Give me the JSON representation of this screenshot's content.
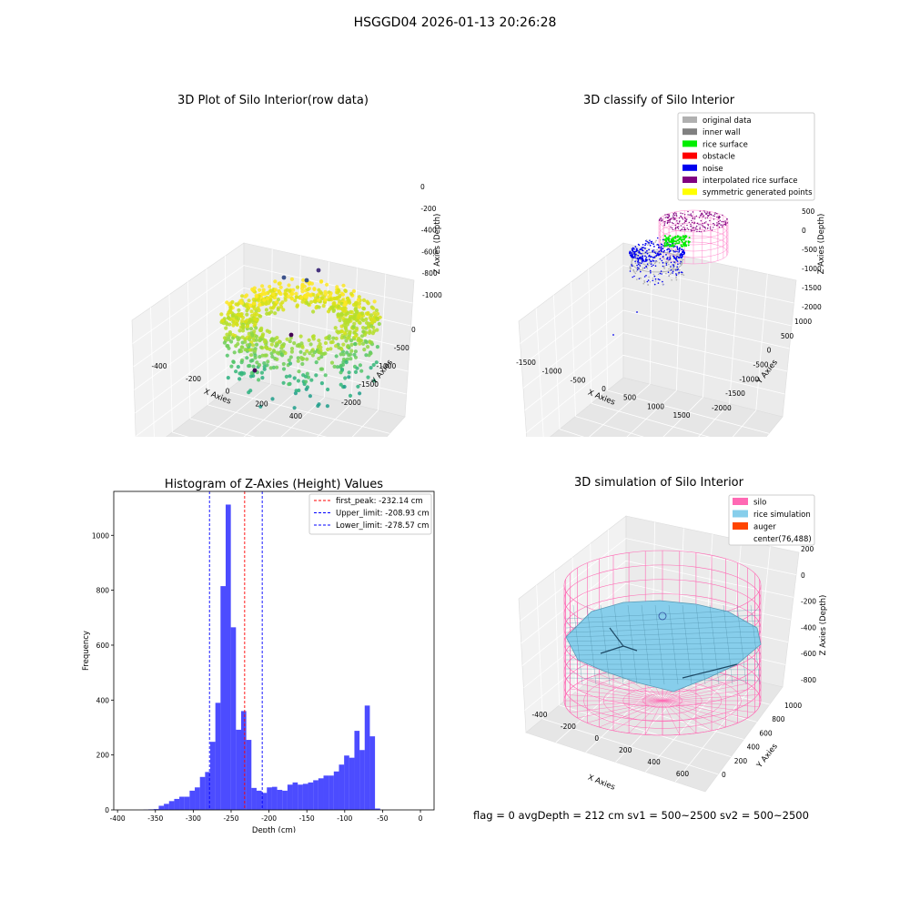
{
  "suptitle": "HSGGD04 2026-01-13 20:26:28",
  "panels": {
    "raw": {
      "title": "3D Plot of Silo Interior(row data)",
      "xlabel": "X Axies",
      "ylabel": "Y Axies",
      "zlabel": "Z Axies (Depth)",
      "xticks": [
        "-400",
        "-200",
        "0",
        "200",
        "400"
      ],
      "yticks": [
        "0",
        "-500",
        "-1000",
        "-1500",
        "-2000"
      ],
      "zticks": [
        "0",
        "-200",
        "-400",
        "-600",
        "-800",
        "-1000"
      ]
    },
    "classify": {
      "title": "3D classify of Silo Interior",
      "xlabel": "X Axies",
      "ylabel": "Y Axies",
      "zlabel": "Z Axies (Depth)",
      "xticks": [
        "-1500",
        "-1000",
        "-500",
        "0",
        "500",
        "1000",
        "1500"
      ],
      "yticks": [
        "1000",
        "500",
        "0",
        "-500",
        "-1000",
        "-1500",
        "-2000"
      ],
      "zticks": [
        "500",
        "0",
        "-500",
        "-1000",
        "-1500",
        "-2000"
      ],
      "legend": [
        {
          "label": "original data",
          "color": "#b0b0b0"
        },
        {
          "label": "inner wall",
          "color": "#808080"
        },
        {
          "label": "rice surface",
          "color": "#00ee00"
        },
        {
          "label": "obstacle",
          "color": "#ff0000"
        },
        {
          "label": "noise",
          "color": "#0000ee"
        },
        {
          "label": "interpolated rice surface",
          "color": "#800080"
        },
        {
          "label": "symmetric generated points",
          "color": "#ffff00"
        }
      ]
    },
    "sim": {
      "title": "3D simulation of Silo Interior",
      "xlabel": "X Axies",
      "ylabel": "Y Axies",
      "zlabel": "Z Axies (Depth)",
      "xticks": [
        "-400",
        "-200",
        "0",
        "200",
        "400",
        "600"
      ],
      "yticks": [
        "0",
        "200",
        "400",
        "600",
        "800",
        "1000"
      ],
      "zticks": [
        "200",
        "0",
        "-200",
        "-400",
        "-600",
        "-800"
      ],
      "legend": [
        {
          "label": "silo",
          "color": "#ff69b4"
        },
        {
          "label": "rice simulation",
          "color": "#87ceeb"
        },
        {
          "label": "auger",
          "color": "#ff4500"
        },
        {
          "label": "center(76,488)",
          "color": ""
        }
      ]
    }
  },
  "chart_data": {
    "type": "bar",
    "title": "Histogram of Z-Axies (Height) Values",
    "xlabel": "Depth (cm)",
    "ylabel": "Frequency",
    "xlim": [
      -405,
      18
    ],
    "ylim": [
      0,
      1160
    ],
    "xticks": [
      -400,
      -350,
      -300,
      -250,
      -200,
      -150,
      -100,
      -50,
      0
    ],
    "yticks": [
      0,
      200,
      400,
      600,
      800,
      1000
    ],
    "bins": {
      "start": -366,
      "width": 6.8,
      "values": [
        1,
        2,
        3,
        15,
        22,
        32,
        40,
        48,
        48,
        70,
        82,
        120,
        138,
        248,
        390,
        815,
        1112,
        665,
        292,
        360,
        255,
        80,
        70,
        62,
        82,
        84,
        73,
        70,
        92,
        100,
        92,
        95,
        100,
        108,
        115,
        125,
        125,
        140,
        165,
        198,
        190,
        288,
        218,
        380,
        268,
        5
      ]
    },
    "vlines": [
      {
        "label": "first_peak: -232.14 cm",
        "x": -232.14,
        "color": "#ff0000"
      },
      {
        "label": "Upper_limit: -208.93 cm",
        "x": -208.93,
        "color": "#0000ff"
      },
      {
        "label": "Lower_limit: -278.57 cm",
        "x": -278.57,
        "color": "#0000ff"
      }
    ],
    "bar_color": "#0000ff"
  },
  "footer": "flag = 0     avgDepth = 212 cm  sv1 = 500~2500  sv2 = 500~2500"
}
